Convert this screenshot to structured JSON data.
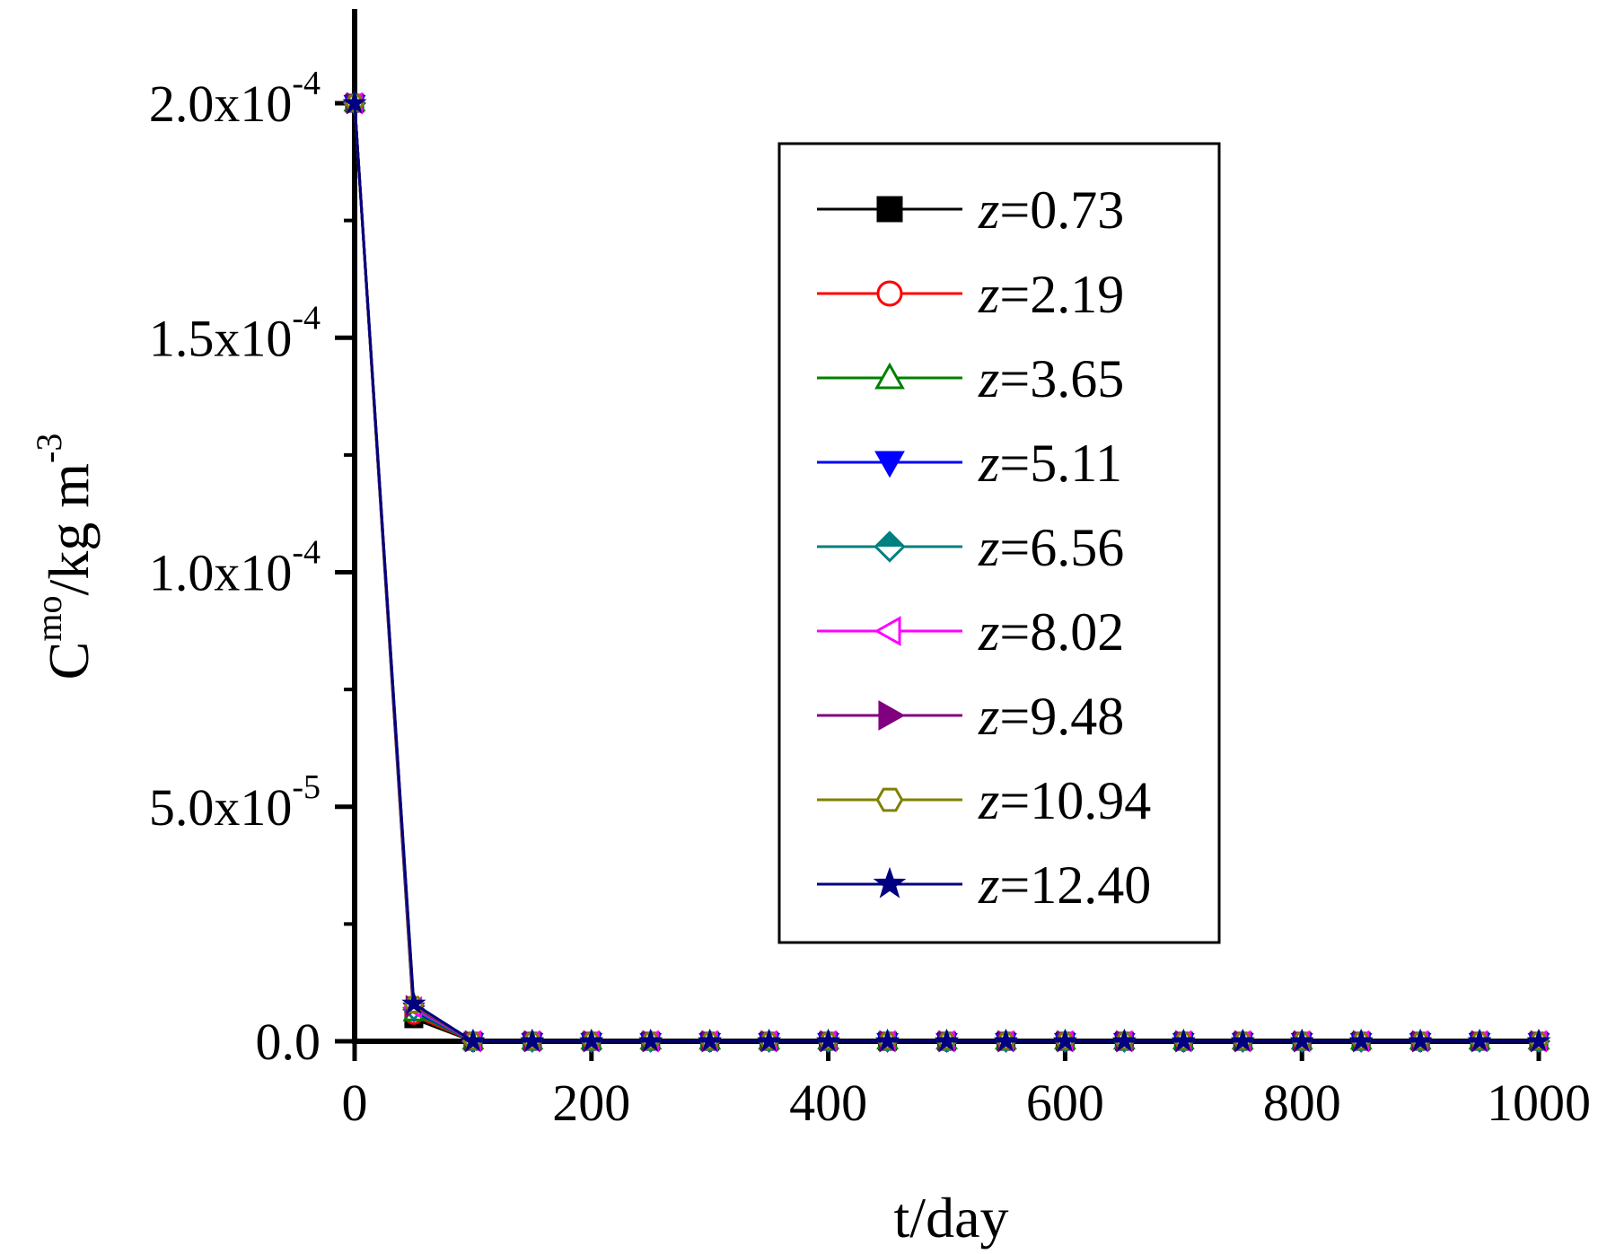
{
  "chart_data": {
    "type": "line",
    "xlabel": "t/day",
    "ylabel": {
      "base": "C",
      "superscript": "mo",
      "unit": "/kg m",
      "unit_superscript": "-3"
    },
    "xlim": [
      0,
      1000
    ],
    "ylim": [
      -2e-06,
      0.00022
    ],
    "x_ticks": [
      0,
      200,
      400,
      600,
      800,
      1000
    ],
    "x_tick_labels": [
      "0",
      "200",
      "400",
      "600",
      "800",
      "1000"
    ],
    "y_ticks": [
      0,
      5e-05,
      0.0001,
      0.00015,
      0.0002
    ],
    "y_tick_labels": [
      {
        "mantissa": "0.0",
        "exponent": ""
      },
      {
        "mantissa": "5.0x10",
        "exponent": "-5"
      },
      {
        "mantissa": "1.0x10",
        "exponent": "-4"
      },
      {
        "mantissa": "1.5x10",
        "exponent": "-4"
      },
      {
        "mantissa": "2.0x10",
        "exponent": "-4"
      }
    ],
    "grid": false,
    "legend_position": "top-right",
    "x": [
      0,
      50,
      100,
      150,
      200,
      250,
      300,
      350,
      400,
      450,
      500,
      550,
      600,
      650,
      700,
      750,
      800,
      850,
      900,
      950,
      1000
    ],
    "series": [
      {
        "name": "z=0.73",
        "name_italic": "z",
        "name_value": "=0.73",
        "color": "#000000",
        "marker": "square",
        "filled": true,
        "values": [
          0.0002,
          4.8e-06,
          0,
          0,
          0,
          0,
          0,
          0,
          0,
          0,
          0,
          0,
          0,
          0,
          0,
          0,
          0,
          0,
          0,
          0,
          0
        ]
      },
      {
        "name": "z=2.19",
        "name_italic": "z",
        "name_value": "=2.19",
        "color": "#ff0000",
        "marker": "circle",
        "filled": false,
        "values": [
          0.0002,
          5.5e-06,
          0,
          0,
          0,
          0,
          0,
          0,
          0,
          0,
          0,
          0,
          0,
          0,
          0,
          0,
          0,
          0,
          0,
          0,
          0
        ]
      },
      {
        "name": "z=3.65",
        "name_italic": "z",
        "name_value": "=3.65",
        "color": "#008000",
        "marker": "triangle-up",
        "filled": false,
        "values": [
          0.0002,
          6e-06,
          0,
          0,
          0,
          0,
          0,
          0,
          0,
          0,
          0,
          0,
          0,
          0,
          0,
          0,
          0,
          0,
          0,
          0,
          0
        ]
      },
      {
        "name": "z=5.11",
        "name_italic": "z",
        "name_value": "=5.11",
        "color": "#0000ff",
        "marker": "triangle-down",
        "filled": true,
        "values": [
          0.0002,
          6.5e-06,
          0,
          0,
          0,
          0,
          0,
          0,
          0,
          0,
          0,
          0,
          0,
          0,
          0,
          0,
          0,
          0,
          0,
          0,
          0
        ]
      },
      {
        "name": "z=6.56",
        "name_italic": "z",
        "name_value": "=6.56",
        "color": "#008080",
        "marker": "diamond",
        "filled": "half",
        "values": [
          0.0002,
          6.8e-06,
          0,
          0,
          0,
          0,
          0,
          0,
          0,
          0,
          0,
          0,
          0,
          0,
          0,
          0,
          0,
          0,
          0,
          0,
          0
        ]
      },
      {
        "name": "z=8.02",
        "name_italic": "z",
        "name_value": "=8.02",
        "color": "#ff00ff",
        "marker": "triangle-left",
        "filled": false,
        "values": [
          0.0002,
          7.2e-06,
          0,
          0,
          0,
          0,
          0,
          0,
          0,
          0,
          0,
          0,
          0,
          0,
          0,
          0,
          0,
          0,
          0,
          0,
          0
        ]
      },
      {
        "name": "z=9.48",
        "name_italic": "z",
        "name_value": "=9.48",
        "color": "#800080",
        "marker": "triangle-right",
        "filled": true,
        "values": [
          0.0002,
          7.5e-06,
          0,
          0,
          0,
          0,
          0,
          0,
          0,
          0,
          0,
          0,
          0,
          0,
          0,
          0,
          0,
          0,
          0,
          0,
          0
        ]
      },
      {
        "name": "z=10.94",
        "name_italic": "z",
        "name_value": "=10.94",
        "color": "#808000",
        "marker": "hexagon",
        "filled": false,
        "values": [
          0.0002,
          7.8e-06,
          0,
          0,
          0,
          0,
          0,
          0,
          0,
          0,
          0,
          0,
          0,
          0,
          0,
          0,
          0,
          0,
          0,
          0,
          0
        ]
      },
      {
        "name": "z=12.40",
        "name_italic": "z",
        "name_value": "=12.40",
        "color": "#000080",
        "marker": "star",
        "filled": true,
        "values": [
          0.0002,
          8e-06,
          0,
          0,
          0,
          0,
          0,
          0,
          0,
          0,
          0,
          0,
          0,
          0,
          0,
          0,
          0,
          0,
          0,
          0,
          0
        ]
      }
    ]
  }
}
